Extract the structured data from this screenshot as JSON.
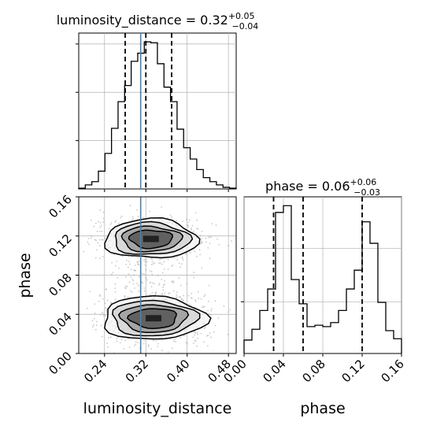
{
  "chart_data": [
    {
      "type": "histogram",
      "panel": "top-left",
      "parameter": "luminosity_distance",
      "title": {
        "text": "luminosity_distance = 0.32",
        "plus": "+0.05",
        "minus": "−0.04"
      },
      "median": 0.32,
      "quantiles": [
        0.28,
        0.32,
        0.37
      ],
      "truth": 0.31,
      "xlim": [
        0.19,
        0.495
      ],
      "bin_edges": [
        0.19,
        0.2027,
        0.2154,
        0.2281,
        0.2408,
        0.2535,
        0.2662,
        0.2789,
        0.2916,
        0.3043,
        0.317,
        0.3297,
        0.3424,
        0.3551,
        0.3678,
        0.3805,
        0.3932,
        0.4059,
        0.4186,
        0.4313,
        0.444,
        0.4567,
        0.4694,
        0.4821,
        0.495
      ],
      "counts": [
        1,
        5,
        9,
        22,
        44,
        75,
        108,
        128,
        158,
        168,
        182,
        181,
        155,
        126,
        108,
        74,
        51,
        37,
        24,
        14,
        9,
        5,
        2,
        1
      ],
      "grid": true
    },
    {
      "type": "histogram",
      "panel": "bottom-right",
      "parameter": "phase",
      "title": {
        "text": "phase = 0.06",
        "plus": "+0.06",
        "minus": "−0.03"
      },
      "median": 0.06,
      "quantiles": [
        0.03,
        0.06,
        0.12
      ],
      "xlim": [
        0.0,
        0.16
      ],
      "xticks": [
        "0.00",
        "0.04",
        "0.08",
        "0.12",
        "0.16"
      ],
      "xlabel": "phase",
      "bin_edges": [
        0.0,
        0.008,
        0.016,
        0.024,
        0.032,
        0.04,
        0.048,
        0.056,
        0.064,
        0.072,
        0.08,
        0.088,
        0.096,
        0.104,
        0.112,
        0.12,
        0.128,
        0.136,
        0.144,
        0.152,
        0.16
      ],
      "counts": [
        10,
        18,
        32,
        48,
        105,
        110,
        55,
        37,
        20,
        21,
        20,
        23,
        32,
        48,
        62,
        98,
        82,
        38,
        17,
        11
      ],
      "grid": true
    },
    {
      "type": "scatter",
      "subtype": "2d-density-contour",
      "panel": "bottom-left",
      "x_parameter": "luminosity_distance",
      "y_parameter": "phase",
      "xlabel": "luminosity_distance",
      "ylabel": "phase",
      "xlim": [
        0.19,
        0.495
      ],
      "ylim": [
        0.0,
        0.16
      ],
      "xticks": [
        "0.24",
        "0.32",
        "0.40",
        "0.48"
      ],
      "yticks": [
        "0.00",
        "0.04",
        "0.08",
        "0.12",
        "0.16"
      ],
      "truth_x": 0.31,
      "modes": [
        {
          "center": [
            0.33,
            0.117
          ],
          "spread": [
            0.045,
            0.01
          ],
          "weight": 0.45
        },
        {
          "center": [
            0.335,
            0.036
          ],
          "spread": [
            0.05,
            0.011
          ],
          "weight": 0.55
        }
      ],
      "contour_levels": [
        "0.5",
        "1.0",
        "1.5",
        "2.0"
      ],
      "grid": true
    }
  ],
  "colors": {
    "hist": "#000000",
    "truth": "#4682b4",
    "grid": "#b0b0b0",
    "points": "#9a9a9a",
    "density_dark": "#222222"
  }
}
